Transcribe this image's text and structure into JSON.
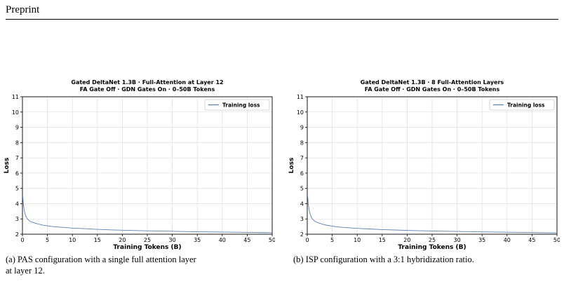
{
  "page": {
    "header": "Preprint"
  },
  "chart_data": [
    {
      "type": "line",
      "title": [
        "Gated DeltaNet 1.3B · Full-Attention at Layer 12",
        "FA Gate Off · GDN Gates On · 0–50B Tokens"
      ],
      "xlabel": "Training Tokens (B)",
      "ylabel": "Loss",
      "xlim": [
        0,
        50
      ],
      "ylim": [
        2,
        11
      ],
      "xticks": [
        0,
        5,
        10,
        15,
        20,
        25,
        30,
        35,
        40,
        45,
        50
      ],
      "yticks": [
        2,
        3,
        4,
        5,
        6,
        7,
        8,
        9,
        10,
        11
      ],
      "grid": true,
      "legend_position": "top-right",
      "colors": {
        "line": "#5a7fb5"
      },
      "series": [
        {
          "name": "Training loss",
          "x": [
            0.05,
            0.2,
            0.4,
            0.6,
            0.8,
            1.0,
            1.5,
            2,
            3,
            4,
            5,
            6,
            8,
            10,
            12,
            15,
            18,
            20,
            25,
            30,
            35,
            40,
            45,
            50
          ],
          "y": [
            4.5,
            3.9,
            3.5,
            3.25,
            3.1,
            3.0,
            2.85,
            2.78,
            2.68,
            2.6,
            2.55,
            2.5,
            2.45,
            2.4,
            2.37,
            2.32,
            2.28,
            2.26,
            2.22,
            2.19,
            2.16,
            2.14,
            2.12,
            2.1
          ]
        }
      ],
      "caption": [
        "(a) PAS configuration with a single full attention layer",
        "at layer 12."
      ]
    },
    {
      "type": "line",
      "title": [
        "Gated DeltaNet 1.3B · 8 Full-Attention Layers",
        "FA Gate Off · GDN Gates On · 0–50B Tokens"
      ],
      "xlabel": "Training Tokens (B)",
      "ylabel": "Loss",
      "xlim": [
        0,
        50
      ],
      "ylim": [
        2,
        11
      ],
      "xticks": [
        0,
        5,
        10,
        15,
        20,
        25,
        30,
        35,
        40,
        45,
        50
      ],
      "yticks": [
        2,
        3,
        4,
        5,
        6,
        7,
        8,
        9,
        10,
        11
      ],
      "grid": true,
      "legend_position": "top-right",
      "colors": {
        "line": "#5a7fb5"
      },
      "series": [
        {
          "name": "Training loss",
          "x": [
            0.05,
            0.2,
            0.4,
            0.6,
            0.8,
            1.0,
            1.5,
            2,
            3,
            4,
            5,
            6,
            8,
            10,
            12,
            15,
            18,
            20,
            25,
            30,
            35,
            40,
            45,
            50
          ],
          "y": [
            4.6,
            3.95,
            3.55,
            3.3,
            3.12,
            3.0,
            2.85,
            2.77,
            2.66,
            2.58,
            2.53,
            2.48,
            2.43,
            2.38,
            2.35,
            2.3,
            2.27,
            2.25,
            2.21,
            2.18,
            2.15,
            2.13,
            2.11,
            2.09
          ]
        }
      ],
      "caption": [
        "(b) ISP configuration with a 3:1 hybridization ratio."
      ]
    }
  ]
}
